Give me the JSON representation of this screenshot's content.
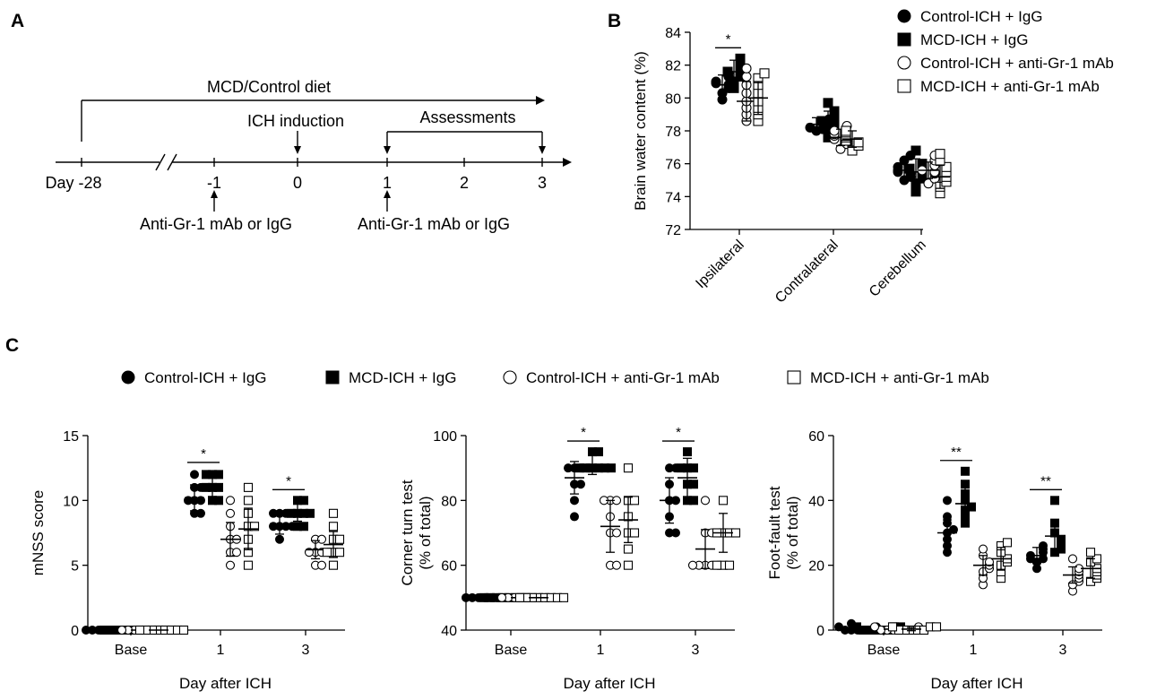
{
  "panels": {
    "A": "A",
    "B": "B",
    "C": "C"
  },
  "timeline": {
    "diet_label": "MCD/Control diet",
    "ich_label": "ICH induction",
    "assess_label": "Assessments",
    "day_label": "Day -28",
    "ticks": [
      "-1",
      "0",
      "1",
      "2",
      "3"
    ],
    "anti_left": "Anti-Gr-1 mAb or IgG",
    "anti_right": "Anti-Gr-1 mAb or IgG"
  },
  "groups": [
    {
      "key": "ctrl_igg",
      "label": "Control-ICH + IgG",
      "marker": "circle",
      "filled": true
    },
    {
      "key": "mcd_igg",
      "label": "MCD-ICH + IgG",
      "marker": "square",
      "filled": true
    },
    {
      "key": "ctrl_ab",
      "label": "Control-ICH + anti-Gr-1 mAb",
      "marker": "circle",
      "filled": false
    },
    {
      "key": "mcd_ab",
      "label": "MCD-ICH + anti-Gr-1 mAb",
      "marker": "square",
      "filled": false
    }
  ],
  "chart_data": [
    {
      "id": "B",
      "type": "scatter",
      "ylabel": "Brain water content (%)",
      "ylim": [
        72,
        84
      ],
      "yticks": [
        "72",
        "74",
        "76",
        "78",
        "80",
        "82",
        "84"
      ],
      "categories": [
        "Ipsilateral",
        "Contralateral",
        "Cerebellum"
      ],
      "series": [
        {
          "name": "Control-ICH + IgG",
          "mean": [
            80.8,
            78.4,
            75.6
          ],
          "sd": [
            0.6,
            0.4,
            0.6
          ],
          "points": [
            [
              79.9,
              80.3,
              80.6,
              80.8,
              81.0,
              81.3,
              81.5,
              80.9
            ],
            [
              78.0,
              78.2,
              78.4,
              78.5,
              78.7,
              78.3,
              78.6,
              78.1
            ],
            [
              75.0,
              75.2,
              75.4,
              75.6,
              75.8,
              76.2,
              76.5,
              75.5
            ]
          ]
        },
        {
          "name": "MCD-ICH + IgG",
          "mean": [
            81.6,
            78.6,
            75.5
          ],
          "sd": [
            0.7,
            0.6,
            0.8
          ],
          "points": [
            [
              80.6,
              81.0,
              81.3,
              81.6,
              81.9,
              82.2,
              82.4,
              81.5
            ],
            [
              77.6,
              78.0,
              78.3,
              78.6,
              78.9,
              79.2,
              79.7,
              78.5
            ],
            [
              74.3,
              74.8,
              75.1,
              75.4,
              75.7,
              76.0,
              76.8,
              75.5
            ]
          ]
        },
        {
          "name": "Control-ICH + anti-Gr-1 mAb",
          "mean": [
            79.8,
            77.6,
            75.6
          ],
          "sd": [
            1.2,
            0.5,
            0.5
          ],
          "points": [
            [
              78.6,
              79.0,
              79.4,
              79.8,
              80.3,
              80.8,
              81.3,
              81.8
            ],
            [
              76.9,
              77.2,
              77.5,
              77.7,
              78.0,
              78.3,
              77.4,
              77.8
            ],
            [
              74.8,
              75.1,
              75.4,
              75.6,
              75.9,
              76.2,
              76.5,
              75.5
            ]
          ]
        },
        {
          "name": "MCD-ICH + anti-Gr-1 mAb",
          "mean": [
            80.0,
            77.5,
            75.2
          ],
          "sd": [
            1.0,
            0.5,
            0.7
          ],
          "points": [
            [
              78.6,
              79.0,
              79.4,
              79.8,
              80.3,
              80.8,
              81.2,
              81.5
            ],
            [
              76.8,
              77.1,
              77.4,
              77.6,
              77.9,
              78.0,
              77.3,
              77.7
            ],
            [
              74.2,
              74.6,
              74.9,
              75.2,
              75.5,
              75.8,
              76.2,
              76.6
            ]
          ]
        }
      ],
      "significance": [
        {
          "group": 0,
          "label": "*"
        }
      ]
    },
    {
      "id": "C1",
      "type": "scatter",
      "ylabel": "mNSS score",
      "xlabel": "Day after ICH",
      "ylim": [
        0,
        15
      ],
      "yticks": [
        "0",
        "5",
        "10",
        "15"
      ],
      "categories": [
        "Base",
        "1",
        "3"
      ],
      "series": [
        {
          "name": "Control-ICH + IgG",
          "mean": [
            0,
            10.2,
            8.2
          ],
          "sd": [
            0,
            1.0,
            0.8
          ],
          "points": [
            [
              0,
              0,
              0,
              0,
              0,
              0,
              0,
              0
            ],
            [
              9,
              9,
              10,
              10,
              10,
              11,
              11,
              12
            ],
            [
              7,
              8,
              8,
              8,
              9,
              9,
              8,
              9
            ]
          ]
        },
        {
          "name": "MCD-ICH + IgG",
          "mean": [
            0,
            11.2,
            9.2
          ],
          "sd": [
            0,
            0.9,
            0.8
          ],
          "points": [
            [
              0,
              0,
              0,
              0,
              0,
              0,
              0,
              0
            ],
            [
              10,
              10,
              11,
              11,
              12,
              12,
              12,
              11
            ],
            [
              8,
              8,
              9,
              9,
              10,
              10,
              9,
              9
            ]
          ]
        },
        {
          "name": "Control-ICH + anti-Gr-1 mAb",
          "mean": [
            0,
            7.0,
            6.2
          ],
          "sd": [
            0,
            1.3,
            0.7
          ],
          "points": [
            [
              0,
              0,
              0,
              0,
              0,
              0,
              0,
              0
            ],
            [
              5,
              6,
              6,
              7,
              7,
              8,
              9,
              10
            ],
            [
              5,
              5,
              6,
              6,
              6,
              7,
              7,
              6
            ]
          ]
        },
        {
          "name": "MCD-ICH + anti-Gr-1 mAb",
          "mean": [
            0,
            7.8,
            6.6
          ],
          "sd": [
            0,
            1.6,
            1.0
          ],
          "points": [
            [
              0,
              0,
              0,
              0,
              0,
              0,
              0,
              0
            ],
            [
              5,
              6,
              7,
              8,
              8,
              9,
              10,
              11
            ],
            [
              5,
              6,
              6,
              7,
              7,
              8,
              9,
              6
            ]
          ]
        }
      ],
      "significance": [
        {
          "group": 1,
          "label": "*"
        },
        {
          "group": 2,
          "label": "*"
        }
      ]
    },
    {
      "id": "C2",
      "type": "scatter",
      "ylabel": "Corner turn test",
      "ylabel2": "(% of total)",
      "xlabel": "Day after ICH",
      "ylim": [
        40,
        100
      ],
      "yticks": [
        "40",
        "60",
        "80",
        "100"
      ],
      "categories": [
        "Base",
        "1",
        "3"
      ],
      "series": [
        {
          "name": "Control-ICH + IgG",
          "mean": [
            50,
            87,
            80
          ],
          "sd": [
            0,
            5,
            7
          ],
          "points": [
            [
              50,
              50,
              50,
              50,
              50,
              50,
              50,
              50
            ],
            [
              75,
              80,
              85,
              85,
              90,
              90,
              90,
              90
            ],
            [
              70,
              70,
              75,
              80,
              80,
              85,
              90,
              90
            ]
          ]
        },
        {
          "name": "MCD-ICH + IgG",
          "mean": [
            50,
            91,
            87
          ],
          "sd": [
            0,
            3,
            6
          ],
          "points": [
            [
              50,
              50,
              50,
              50,
              50,
              50,
              50,
              50
            ],
            [
              90,
              90,
              90,
              90,
              95,
              95,
              90,
              90
            ],
            [
              80,
              80,
              85,
              85,
              90,
              90,
              90,
              95
            ]
          ]
        },
        {
          "name": "Control-ICH + anti-Gr-1 mAb",
          "mean": [
            50,
            72,
            65
          ],
          "sd": [
            0,
            8,
            6
          ],
          "points": [
            [
              50,
              50,
              50,
              50,
              50,
              50,
              50,
              50
            ],
            [
              60,
              60,
              70,
              70,
              75,
              80,
              80,
              80
            ],
            [
              60,
              60,
              60,
              60,
              70,
              70,
              80,
              60
            ]
          ]
        },
        {
          "name": "MCD-ICH + anti-Gr-1 mAb",
          "mean": [
            50,
            74,
            70
          ],
          "sd": [
            0,
            7,
            6
          ],
          "points": [
            [
              50,
              50,
              50,
              50,
              50,
              50,
              50,
              50
            ],
            [
              60,
              65,
              70,
              75,
              80,
              80,
              90,
              70
            ],
            [
              60,
              60,
              70,
              70,
              70,
              80,
              70,
              60
            ]
          ]
        }
      ],
      "significance": [
        {
          "group": 1,
          "label": "*"
        },
        {
          "group": 2,
          "label": "*"
        }
      ]
    },
    {
      "id": "C3",
      "type": "scatter",
      "ylabel": "Foot-fault test",
      "ylabel2": "(% of total)",
      "xlabel": "Day after ICH",
      "ylim": [
        0,
        60
      ],
      "yticks": [
        "0",
        "20",
        "40",
        "60"
      ],
      "categories": [
        "Base",
        "1",
        "3"
      ],
      "series": [
        {
          "name": "Control-ICH + IgG",
          "mean": [
            0.5,
            30,
            23
          ],
          "sd": [
            0.6,
            4,
            2.5
          ],
          "points": [
            [
              0,
              0,
              0,
              0,
              1,
              1,
              2,
              0
            ],
            [
              24,
              26,
              28,
              30,
              31,
              33,
              35,
              40
            ],
            [
              19,
              21,
              22,
              23,
              24,
              25,
              26,
              22
            ]
          ]
        },
        {
          "name": "MCD-ICH + IgG",
          "mean": [
            0.5,
            39,
            29
          ],
          "sd": [
            0.6,
            5,
            4
          ],
          "points": [
            [
              0,
              0,
              0,
              0,
              1,
              1,
              1,
              0
            ],
            [
              33,
              35,
              37,
              38,
              40,
              42,
              45,
              49
            ],
            [
              24,
              25,
              26,
              27,
              28,
              30,
              33,
              40
            ]
          ]
        },
        {
          "name": "Control-ICH + anti-Gr-1 mAb",
          "mean": [
            0.3,
            20,
            17
          ],
          "sd": [
            0.5,
            3,
            2.5
          ],
          "points": [
            [
              0,
              0,
              0,
              0,
              0,
              1,
              1,
              0
            ],
            [
              14,
              16,
              18,
              19,
              20,
              21,
              23,
              25
            ],
            [
              12,
              14,
              15,
              16,
              17,
              18,
              19,
              22
            ]
          ]
        },
        {
          "name": "MCD-ICH + anti-Gr-1 mAb",
          "mean": [
            0.3,
            22,
            19
          ],
          "sd": [
            0.5,
            3.5,
            3
          ],
          "points": [
            [
              0,
              0,
              0,
              0,
              0,
              1,
              1,
              1
            ],
            [
              16,
              18,
              20,
              21,
              22,
              24,
              26,
              27
            ],
            [
              15,
              16,
              17,
              18,
              19,
              21,
              22,
              24
            ]
          ]
        }
      ],
      "significance": [
        {
          "group": 1,
          "label": "**"
        },
        {
          "group": 2,
          "label": "**"
        }
      ]
    }
  ]
}
